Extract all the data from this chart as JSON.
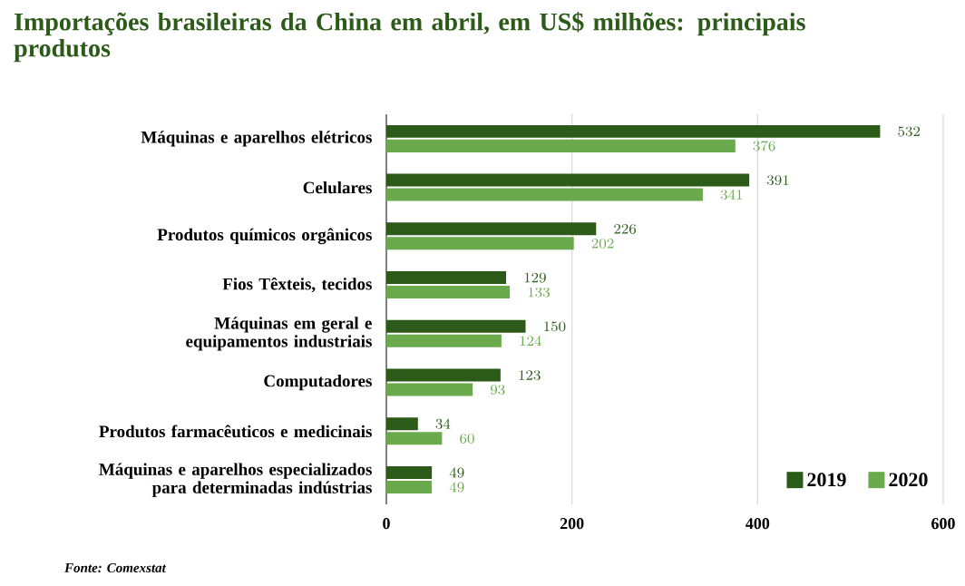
{
  "chart_data": {
    "type": "bar",
    "orientation": "horizontal",
    "title": "Importações brasileiras da China em abril, em US$ milhões: principais produtos",
    "categories": [
      "Máquinas e aparelhos elétricos",
      "Celulares",
      "Produtos químicos orgânicos",
      "Fios Têxteis, tecidos",
      "Máquinas em geral e equipamentos industriais",
      "Computadores",
      "Produtos farmacêuticos e medicinais",
      "Máquinas e aparelhos especializados para determinadas indústrias"
    ],
    "series": [
      {
        "name": "2019",
        "color": "#2b5a19",
        "values": [
          532,
          391,
          226,
          129,
          150,
          123,
          34,
          49
        ]
      },
      {
        "name": "2020",
        "color": "#6aaa4c",
        "values": [
          376,
          341,
          202,
          133,
          124,
          93,
          60,
          49
        ]
      }
    ],
    "xlim": [
      0,
      600
    ],
    "xticks": [
      0,
      200,
      400,
      600
    ],
    "grid": "x",
    "legend": "bottom right",
    "data_labels": true,
    "annotations": [
      "Fonte: Comexstat"
    ]
  }
}
